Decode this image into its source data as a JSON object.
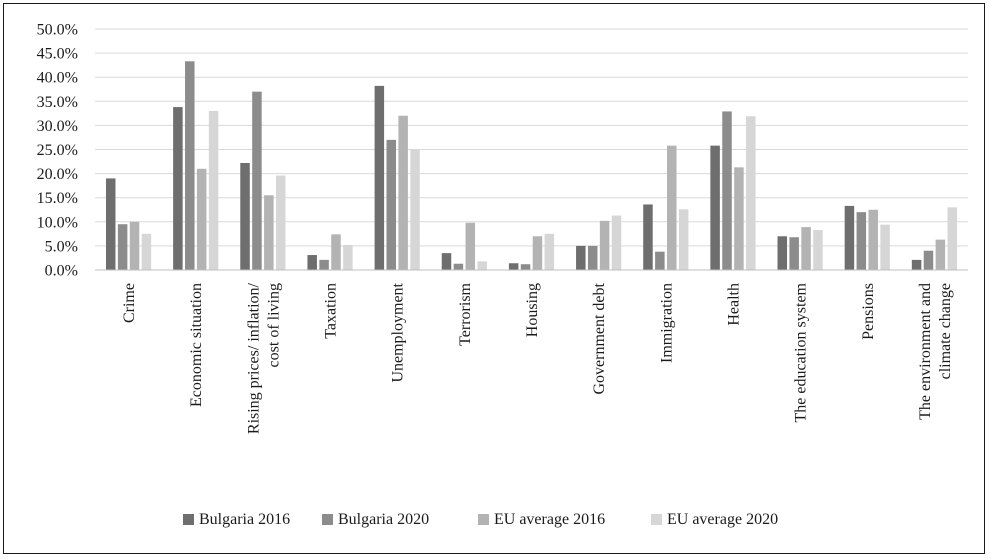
{
  "chart_data": {
    "type": "bar",
    "title": "",
    "xlabel": "",
    "ylabel": "",
    "ylim": [
      0,
      50
    ],
    "yticks": [
      "0.0%",
      "5.0%",
      "10.0%",
      "15.0%",
      "20.0%",
      "25.0%",
      "30.0%",
      "35.0%",
      "40.0%",
      "45.0%",
      "50.0%"
    ],
    "grid": "horizontal",
    "legend_position": "bottom",
    "categories": [
      [
        "Crime"
      ],
      [
        "Economic situation"
      ],
      [
        "Rising prices/ inflation/",
        "cost of living"
      ],
      [
        "Taxation"
      ],
      [
        "Unemployment"
      ],
      [
        "Terrorism"
      ],
      [
        "Housing"
      ],
      [
        "Government debt"
      ],
      [
        "Immigration"
      ],
      [
        "Health"
      ],
      [
        "The education system"
      ],
      [
        "Pensions"
      ],
      [
        "The environment and",
        "climate change"
      ]
    ],
    "series": [
      {
        "name": "Bulgaria 2016",
        "color": "#6e6e6e",
        "values": [
          19.0,
          33.8,
          22.2,
          3.1,
          38.2,
          3.5,
          1.4,
          5.0,
          13.6,
          25.8,
          7.0,
          13.3,
          2.1
        ]
      },
      {
        "name": "Bulgaria 2020",
        "color": "#8c8c8c",
        "values": [
          9.5,
          43.3,
          37.0,
          2.1,
          27.0,
          1.3,
          1.2,
          5.0,
          3.8,
          32.9,
          6.8,
          12.0,
          4.0
        ]
      },
      {
        "name": "EU average 2016",
        "color": "#b3b3b3",
        "values": [
          10.0,
          21.0,
          15.5,
          7.4,
          32.0,
          9.8,
          7.0,
          10.2,
          25.8,
          21.3,
          8.9,
          12.5,
          6.3
        ]
      },
      {
        "name": "EU average 2020",
        "color": "#d6d6d6",
        "values": [
          7.5,
          33.0,
          19.6,
          5.2,
          25.0,
          1.8,
          7.5,
          11.3,
          12.6,
          31.9,
          8.3,
          9.4,
          13.0
        ]
      }
    ]
  }
}
